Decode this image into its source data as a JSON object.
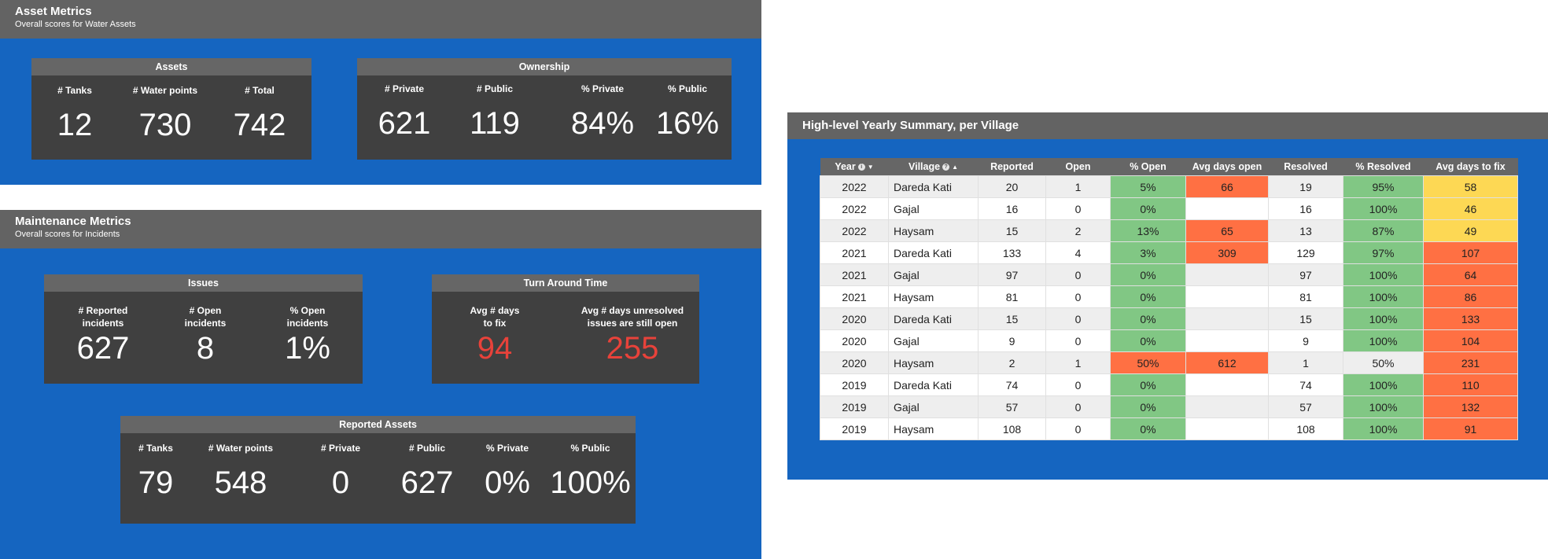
{
  "asset_metrics": {
    "title": "Asset Metrics",
    "subtitle": "Overall scores for Water Assets",
    "assets_card": {
      "title": "Assets",
      "metrics": [
        {
          "label": "# Tanks",
          "value": "12"
        },
        {
          "label": "# Water points",
          "value": "730"
        },
        {
          "label": "# Total",
          "value": "742"
        }
      ]
    },
    "ownership_card": {
      "title": "Ownership",
      "metrics": [
        {
          "label": "# Private",
          "value": "621"
        },
        {
          "label": "# Public",
          "value": "119"
        },
        {
          "label": "% Private",
          "value": "84%"
        },
        {
          "label": "% Public",
          "value": "16%"
        }
      ]
    }
  },
  "maintenance_metrics": {
    "title": "Maintenance Metrics",
    "subtitle": "Overall scores for Incidents",
    "issues_card": {
      "title": "Issues",
      "metrics": [
        {
          "label1": "# Reported",
          "label2": "incidents",
          "value": "627"
        },
        {
          "label1": "# Open",
          "label2": "incidents",
          "value": "8"
        },
        {
          "label1": "% Open",
          "label2": "incidents",
          "value": "1%"
        }
      ]
    },
    "turnaround_card": {
      "title": "Turn Around Time",
      "metrics": [
        {
          "label1": "Avg # days",
          "label2": "to fix",
          "value": "94"
        },
        {
          "label1": "Avg # days unresolved",
          "label2": "issues are still open",
          "value": "255"
        }
      ]
    },
    "reported_assets_card": {
      "title": "Reported Assets",
      "metrics": [
        {
          "label": "# Tanks",
          "value": "79"
        },
        {
          "label": "# Water points",
          "value": "548"
        },
        {
          "label": "# Private",
          "value": "0"
        },
        {
          "label": "# Public",
          "value": "627"
        },
        {
          "label": "% Private",
          "value": "0%"
        },
        {
          "label": "% Public",
          "value": "100%"
        }
      ]
    }
  },
  "summary": {
    "title": "High-level Yearly Summary, per Village",
    "columns": [
      "Year",
      "Village",
      "Reported",
      "Open",
      "% Open",
      "Avg days open",
      "Resolved",
      "% Resolved",
      "Avg days to fix"
    ],
    "rows": [
      [
        "2022",
        "Dareda Kati",
        "20",
        "1",
        "5%",
        "66",
        "19",
        "95%",
        "58"
      ],
      [
        "2022",
        "Gajal",
        "16",
        "0",
        "0%",
        "",
        "16",
        "100%",
        "46"
      ],
      [
        "2022",
        "Haysam",
        "15",
        "2",
        "13%",
        "65",
        "13",
        "87%",
        "49"
      ],
      [
        "2021",
        "Dareda Kati",
        "133",
        "4",
        "3%",
        "309",
        "129",
        "97%",
        "107"
      ],
      [
        "2021",
        "Gajal",
        "97",
        "0",
        "0%",
        "",
        "97",
        "100%",
        "64"
      ],
      [
        "2021",
        "Haysam",
        "81",
        "0",
        "0%",
        "",
        "81",
        "100%",
        "86"
      ],
      [
        "2020",
        "Dareda Kati",
        "15",
        "0",
        "0%",
        "",
        "15",
        "100%",
        "133"
      ],
      [
        "2020",
        "Gajal",
        "9",
        "0",
        "0%",
        "",
        "9",
        "100%",
        "104"
      ],
      [
        "2020",
        "Haysam",
        "2",
        "1",
        "50%",
        "612",
        "1",
        "50%",
        "231"
      ],
      [
        "2019",
        "Dareda Kati",
        "74",
        "0",
        "0%",
        "",
        "74",
        "100%",
        "110"
      ],
      [
        "2019",
        "Gajal",
        "57",
        "0",
        "0%",
        "",
        "57",
        "100%",
        "132"
      ],
      [
        "2019",
        "Haysam",
        "108",
        "0",
        "0%",
        "",
        "108",
        "100%",
        "91"
      ]
    ],
    "cell_colors": [
      [
        "",
        "",
        "",
        "",
        "g",
        "o",
        "",
        "g",
        "y"
      ],
      [
        "",
        "",
        "",
        "",
        "g",
        "",
        "",
        "g",
        "y"
      ],
      [
        "",
        "",
        "",
        "",
        "g",
        "o",
        "",
        "g",
        "y"
      ],
      [
        "",
        "",
        "",
        "",
        "g",
        "o",
        "",
        "g",
        "o"
      ],
      [
        "",
        "",
        "",
        "",
        "g",
        "",
        "",
        "g",
        "o"
      ],
      [
        "",
        "",
        "",
        "",
        "g",
        "",
        "",
        "g",
        "o"
      ],
      [
        "",
        "",
        "",
        "",
        "g",
        "",
        "",
        "g",
        "o"
      ],
      [
        "",
        "",
        "",
        "",
        "g",
        "",
        "",
        "g",
        "o"
      ],
      [
        "",
        "",
        "",
        "",
        "o",
        "o",
        "",
        "",
        "o"
      ],
      [
        "",
        "",
        "",
        "",
        "g",
        "",
        "",
        "g",
        "o"
      ],
      [
        "",
        "",
        "",
        "",
        "g",
        "",
        "",
        "g",
        "o"
      ],
      [
        "",
        "",
        "",
        "",
        "g",
        "",
        "",
        "g",
        "o"
      ]
    ],
    "colors": {
      "green": "#81c784",
      "orange": "#ff7043",
      "yellow": "#fdd854",
      "blue": "#1565c0"
    }
  }
}
